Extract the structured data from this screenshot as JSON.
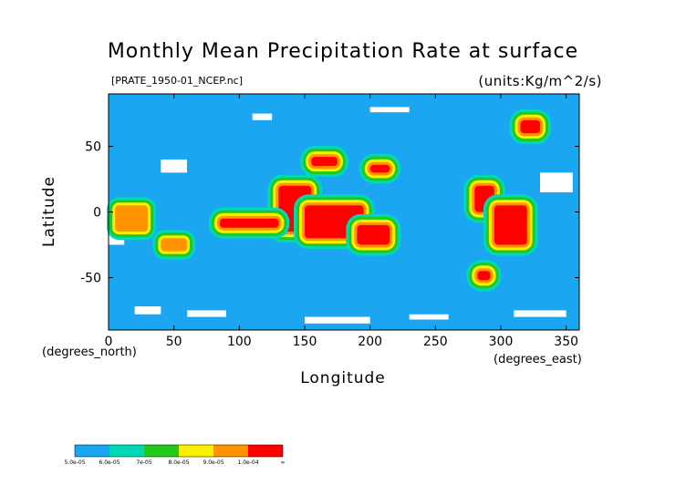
{
  "chart_data": {
    "type": "heatmap",
    "title": "Monthly Mean Precipitation Rate at surface",
    "subtitle": "[PRATE_1950-01_NCEP.nc]",
    "units": "(units:Kg/m^2/s)",
    "xlabel": "Longitude",
    "ylabel": "Latitude",
    "x_unit": "(degrees_north)",
    "y_unit": "(degrees_east)",
    "x_ticks": [
      0,
      50,
      100,
      150,
      200,
      250,
      300,
      350
    ],
    "y_ticks": [
      50,
      0,
      -50
    ],
    "xlim": [
      0,
      360
    ],
    "ylim": [
      -90,
      90
    ],
    "levels": [
      "5.0e-05",
      "6.0e-05",
      "7e-05",
      "8.0e-05",
      "9.0e-05",
      "1.0e-04",
      "∞"
    ],
    "colors": [
      "#1aa6f0",
      "#00d8b8",
      "#22c81e",
      "#f8f000",
      "#ff9400",
      "#ff0000"
    ],
    "background_level_color": "#1aa6f0",
    "missing_color": "#ffffff",
    "regions": [
      {
        "level": 5,
        "lon": [
          130,
          155
        ],
        "lat": [
          -15,
          20
        ]
      },
      {
        "level": 5,
        "lon": [
          150,
          195
        ],
        "lat": [
          -20,
          5
        ]
      },
      {
        "level": 5,
        "lon": [
          190,
          215
        ],
        "lat": [
          -25,
          -10
        ]
      },
      {
        "level": 5,
        "lon": [
          85,
          130
        ],
        "lat": [
          -5,
          -12
        ]
      },
      {
        "level": 5,
        "lon": [
          280,
          295
        ],
        "lat": [
          0,
          20
        ]
      },
      {
        "level": 5,
        "lon": [
          295,
          320
        ],
        "lat": [
          -25,
          5
        ]
      },
      {
        "level": 5,
        "lon": [
          315,
          330
        ],
        "lat": [
          60,
          70
        ]
      },
      {
        "level": 5,
        "lon": [
          155,
          175
        ],
        "lat": [
          35,
          42
        ]
      },
      {
        "level": 5,
        "lon": [
          200,
          215
        ],
        "lat": [
          30,
          36
        ]
      },
      {
        "level": 5,
        "lon": [
          282,
          292
        ],
        "lat": [
          -45,
          -52
        ]
      },
      {
        "level": 4,
        "lon": [
          5,
          30
        ],
        "lat": [
          -15,
          5
        ]
      },
      {
        "level": 4,
        "lon": [
          40,
          60
        ],
        "lat": [
          -20,
          -30
        ]
      }
    ]
  }
}
